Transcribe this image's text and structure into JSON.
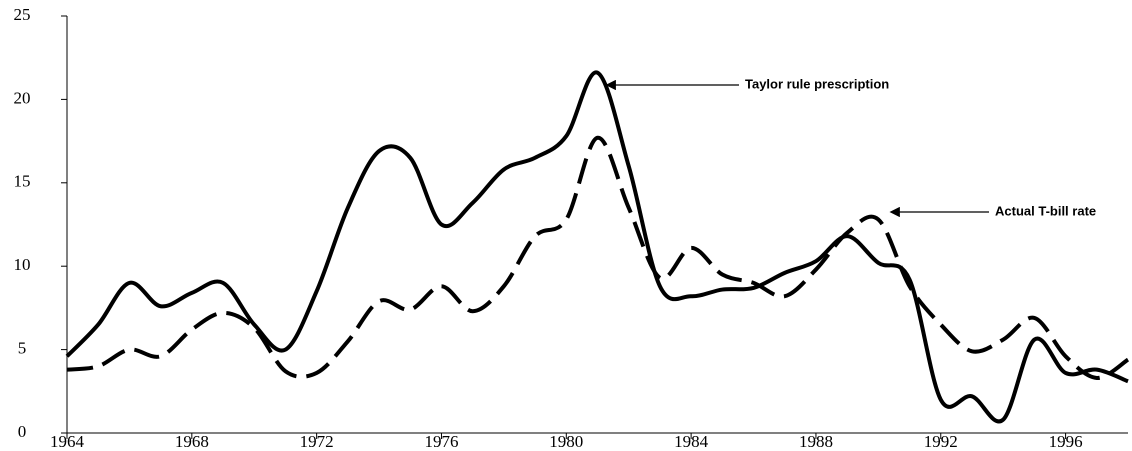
{
  "chart_data": {
    "type": "line",
    "x": [
      1964,
      1965,
      1966,
      1967,
      1968,
      1969,
      1970,
      1971,
      1972,
      1973,
      1974,
      1975,
      1976,
      1977,
      1978,
      1979,
      1980,
      1981,
      1982,
      1983,
      1984,
      1985,
      1986,
      1987,
      1988,
      1989,
      1990,
      1991,
      1992,
      1993,
      1994,
      1995,
      1996,
      1997,
      1998
    ],
    "series": [
      {
        "name": "Taylor rule prescription",
        "color": "#000000",
        "dash": "solid",
        "values": [
          4.6,
          6.5,
          9.0,
          7.6,
          8.4,
          9.0,
          6.5,
          5.0,
          8.5,
          13.5,
          16.9,
          16.5,
          12.5,
          13.8,
          15.8,
          16.5,
          17.8,
          21.6,
          16.0,
          8.8,
          8.2,
          8.6,
          8.7,
          9.6,
          10.3,
          11.8,
          10.2,
          9.2,
          2.0,
          2.2,
          0.8,
          5.6,
          3.6,
          3.8,
          3.1
        ]
      },
      {
        "name": "Actual T-bill rate",
        "color": "#000000",
        "dash": "dashed",
        "values": [
          3.8,
          4.0,
          5.0,
          4.6,
          6.2,
          7.2,
          6.3,
          3.7,
          3.6,
          5.5,
          7.9,
          7.4,
          8.8,
          7.3,
          8.8,
          11.8,
          12.8,
          17.7,
          13.5,
          9.3,
          11.1,
          9.5,
          9.0,
          8.2,
          9.8,
          12.0,
          12.8,
          8.8,
          6.5,
          4.9,
          5.6,
          6.9,
          4.6,
          3.3,
          4.4
        ]
      }
    ],
    "xlim": [
      1964,
      1998
    ],
    "xticks": [
      1964,
      1968,
      1972,
      1976,
      1980,
      1984,
      1988,
      1992,
      1996
    ],
    "ylim": [
      0,
      25
    ],
    "yticks": [
      0,
      5,
      10,
      15,
      20,
      25
    ],
    "annotations": [
      {
        "text": "Taylor rule prescription",
        "series": 0,
        "x": 1981.3
      },
      {
        "text": "Actual T-bill rate",
        "series": 1,
        "x": 1990.4
      }
    ]
  }
}
